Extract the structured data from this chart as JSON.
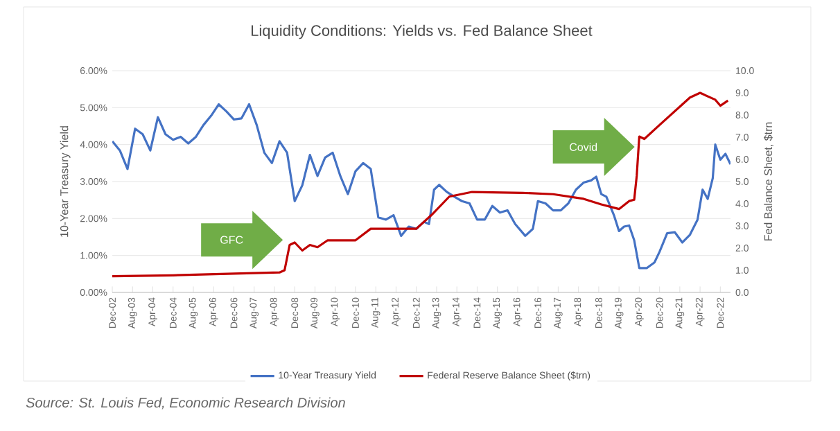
{
  "chart_data": {
    "type": "line",
    "title": "Liquidity Conditions: Yields vs. Fed Balance Sheet",
    "ylabel": "10-Year Treasury Yield",
    "y2label": "Fed Balance Sheet, $trn",
    "xlim": [
      "2002-12",
      "2023-04"
    ],
    "xticks": [
      {
        "value": "2002-12",
        "label": "Dec-02"
      },
      {
        "value": "2003-08",
        "label": "Aug-03"
      },
      {
        "value": "2004-04",
        "label": "Apr-04"
      },
      {
        "value": "2004-12",
        "label": "Dec-04"
      },
      {
        "value": "2005-08",
        "label": "Aug-05"
      },
      {
        "value": "2006-04",
        "label": "Apr-06"
      },
      {
        "value": "2006-12",
        "label": "Dec-06"
      },
      {
        "value": "2007-08",
        "label": "Aug-07"
      },
      {
        "value": "2008-04",
        "label": "Apr-08"
      },
      {
        "value": "2008-12",
        "label": "Dec-08"
      },
      {
        "value": "2009-08",
        "label": "Aug-09"
      },
      {
        "value": "2010-04",
        "label": "Apr-10"
      },
      {
        "value": "2010-12",
        "label": "Dec-10"
      },
      {
        "value": "2011-08",
        "label": "Aug-11"
      },
      {
        "value": "2012-04",
        "label": "Apr-12"
      },
      {
        "value": "2012-12",
        "label": "Dec-12"
      },
      {
        "value": "2013-08",
        "label": "Aug-13"
      },
      {
        "value": "2014-04",
        "label": "Apr-14"
      },
      {
        "value": "2014-12",
        "label": "Dec-14"
      },
      {
        "value": "2015-08",
        "label": "Aug-15"
      },
      {
        "value": "2016-04",
        "label": "Apr-16"
      },
      {
        "value": "2016-12",
        "label": "Dec-16"
      },
      {
        "value": "2017-08",
        "label": "Aug-17"
      },
      {
        "value": "2018-04",
        "label": "Apr-18"
      },
      {
        "value": "2018-12",
        "label": "Dec-18"
      },
      {
        "value": "2019-08",
        "label": "Aug-19"
      },
      {
        "value": "2020-04",
        "label": "Apr-20"
      },
      {
        "value": "2020-12",
        "label": "Dec-20"
      },
      {
        "value": "2021-08",
        "label": "Aug-21"
      },
      {
        "value": "2022-04",
        "label": "Apr-22"
      },
      {
        "value": "2022-12",
        "label": "Dec-22"
      }
    ],
    "ylim": [
      0,
      6
    ],
    "yticks": [
      {
        "value": 0,
        "label": "0.00%"
      },
      {
        "value": 1,
        "label": "1.00%"
      },
      {
        "value": 2,
        "label": "2.00%"
      },
      {
        "value": 3,
        "label": "3.00%"
      },
      {
        "value": 4,
        "label": "4.00%"
      },
      {
        "value": 5,
        "label": "5.00%"
      },
      {
        "value": 6,
        "label": "6.00%"
      }
    ],
    "y2lim": [
      0,
      10
    ],
    "y2ticks": [
      {
        "value": 0,
        "label": "0.0"
      },
      {
        "value": 1,
        "label": "1.0"
      },
      {
        "value": 2,
        "label": "2.0"
      },
      {
        "value": 3,
        "label": "3.0"
      },
      {
        "value": 4,
        "label": "4.0"
      },
      {
        "value": 5,
        "label": "5.0"
      },
      {
        "value": 6,
        "label": "6.0"
      },
      {
        "value": 7,
        "label": "7.0"
      },
      {
        "value": 8,
        "label": "8.0"
      },
      {
        "value": 9,
        "label": "9.0"
      },
      {
        "value": 10,
        "label": "10.0"
      }
    ],
    "grid": "y",
    "legend": "bottom",
    "series": [
      {
        "name": "10-Year Treasury Yield",
        "color": "#4472c4",
        "x": [
          "2002-12",
          "2003-03",
          "2003-06",
          "2003-09",
          "2003-12",
          "2004-03",
          "2004-06",
          "2004-09",
          "2004-12",
          "2005-03",
          "2005-06",
          "2005-09",
          "2005-12",
          "2006-03",
          "2006-06",
          "2006-09",
          "2006-12",
          "2007-03",
          "2007-06",
          "2007-09",
          "2007-12",
          "2008-03",
          "2008-06",
          "2008-09",
          "2008-12",
          "2009-03",
          "2009-06",
          "2009-09",
          "2009-12",
          "2010-03",
          "2010-06",
          "2010-09",
          "2010-12",
          "2011-03",
          "2011-06",
          "2011-09",
          "2011-12",
          "2012-03",
          "2012-06",
          "2012-09",
          "2012-12",
          "2013-03",
          "2013-05",
          "2013-07",
          "2013-09",
          "2013-12",
          "2014-03",
          "2014-06",
          "2014-09",
          "2014-12",
          "2015-03",
          "2015-06",
          "2015-09",
          "2015-12",
          "2016-03",
          "2016-07",
          "2016-10",
          "2016-12",
          "2017-03",
          "2017-06",
          "2017-09",
          "2017-12",
          "2018-03",
          "2018-06",
          "2018-09",
          "2018-11",
          "2019-01",
          "2019-03",
          "2019-06",
          "2019-08",
          "2019-10",
          "2019-12",
          "2020-02",
          "2020-04",
          "2020-07",
          "2020-10",
          "2020-12",
          "2021-03",
          "2021-06",
          "2021-09",
          "2021-12",
          "2022-03",
          "2022-05",
          "2022-07",
          "2022-09",
          "2022-10",
          "2022-12",
          "2023-02",
          "2023-04"
        ],
        "values": [
          4.09,
          3.84,
          3.34,
          4.43,
          4.28,
          3.84,
          4.74,
          4.28,
          4.13,
          4.21,
          4.03,
          4.21,
          4.53,
          4.78,
          5.09,
          4.9,
          4.68,
          4.71,
          5.09,
          4.53,
          3.78,
          3.5,
          4.09,
          3.78,
          2.47,
          2.9,
          3.72,
          3.15,
          3.65,
          3.78,
          3.15,
          2.66,
          3.28,
          3.5,
          3.34,
          2.03,
          1.97,
          2.09,
          1.53,
          1.78,
          1.72,
          1.91,
          1.85,
          2.78,
          2.91,
          2.72,
          2.59,
          2.47,
          2.41,
          1.97,
          1.97,
          2.34,
          2.16,
          2.22,
          1.85,
          1.53,
          1.72,
          2.47,
          2.41,
          2.22,
          2.22,
          2.41,
          2.78,
          2.97,
          3.03,
          3.13,
          2.66,
          2.59,
          2.09,
          1.66,
          1.78,
          1.81,
          1.41,
          0.66,
          0.66,
          0.81,
          1.1,
          1.6,
          1.63,
          1.35,
          1.56,
          1.97,
          2.78,
          2.53,
          3.09,
          4.0,
          3.59,
          3.75,
          3.47
        ]
      },
      {
        "name": "Federal Reserve Balance Sheet ($trn)",
        "color": "#c00000",
        "axis": "y2",
        "x": [
          "2002-12",
          "2004-12",
          "2006-12",
          "2008-06",
          "2008-08",
          "2008-10",
          "2008-12",
          "2009-03",
          "2009-06",
          "2009-09",
          "2010-01",
          "2010-12",
          "2011-06",
          "2011-12",
          "2012-12",
          "2013-06",
          "2014-01",
          "2014-10",
          "2016-06",
          "2017-06",
          "2018-06",
          "2019-01",
          "2019-08",
          "2019-12",
          "2020-02",
          "2020-03",
          "2020-04",
          "2020-06",
          "2020-12",
          "2021-06",
          "2021-12",
          "2022-04",
          "2022-10",
          "2022-12",
          "2023-03"
        ],
        "values": [
          0.73,
          0.77,
          0.85,
          0.9,
          1.0,
          2.14,
          2.25,
          1.89,
          2.14,
          2.04,
          2.35,
          2.35,
          2.87,
          2.87,
          2.87,
          3.49,
          4.32,
          4.53,
          4.49,
          4.43,
          4.22,
          3.97,
          3.76,
          4.12,
          4.18,
          5.26,
          7.03,
          6.92,
          7.55,
          8.17,
          8.79,
          9.0,
          8.69,
          8.42,
          8.65
        ]
      }
    ],
    "annotations": [
      "GFC",
      "Covid",
      "Source: St. Louis Fed, Economic Research Division"
    ]
  }
}
